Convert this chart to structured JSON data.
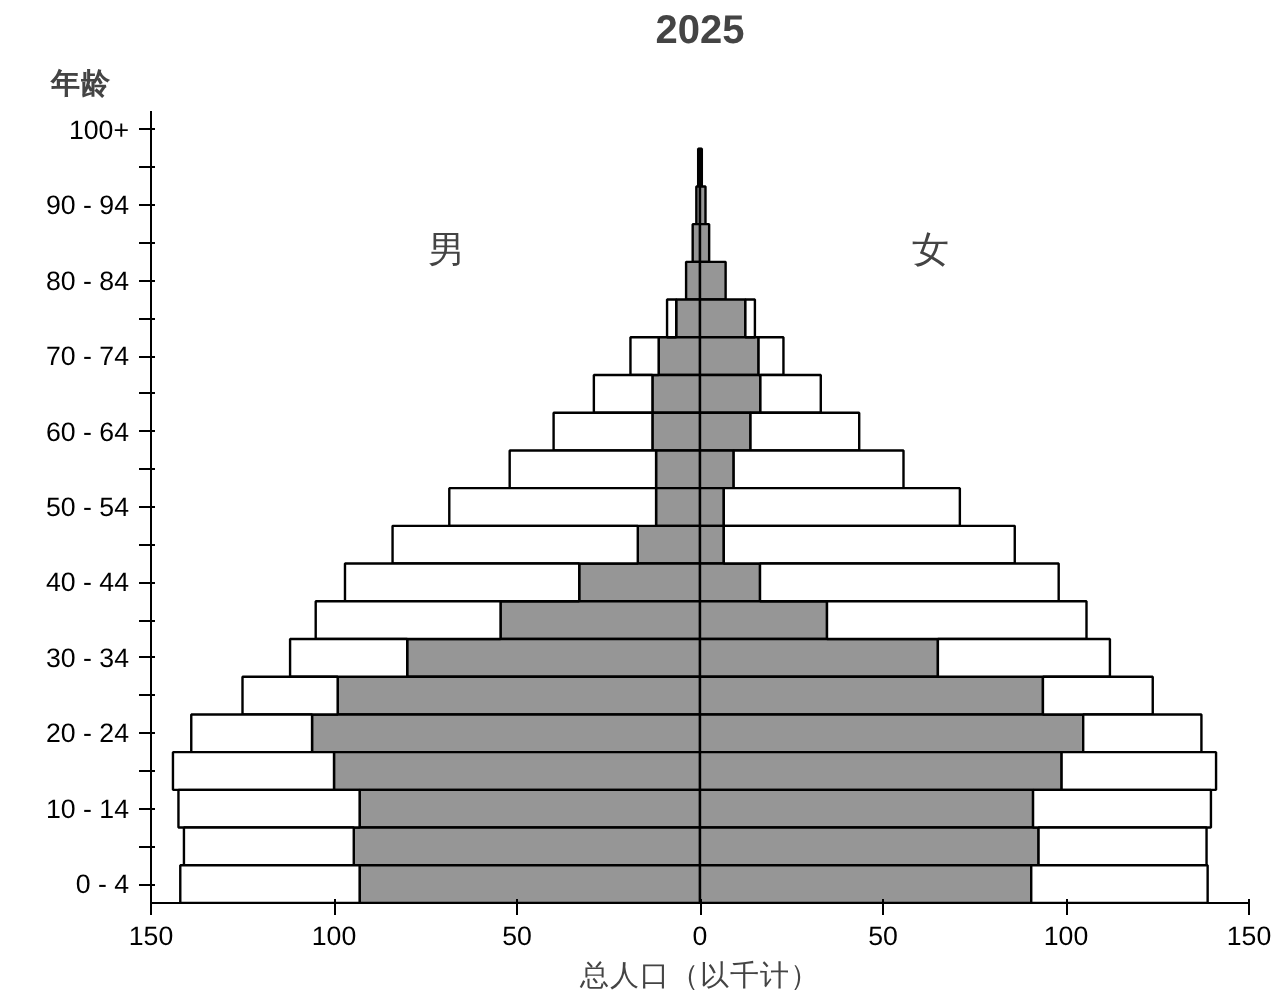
{
  "chart_data": {
    "type": "bar",
    "orientation": "horizontal",
    "stacked": true,
    "title": "2025",
    "ylabel": "年龄",
    "xlabel": "总人口（以千计）",
    "categories": [
      "100+",
      null,
      "90 - 94",
      null,
      "80 - 84",
      null,
      "70 - 74",
      null,
      "60 - 64",
      null,
      "50 - 54",
      null,
      "40 - 44",
      null,
      "30 - 34",
      null,
      "20 - 24",
      null,
      "10 - 14",
      null,
      "0 - 4"
    ],
    "series": [
      {
        "color": "#969696",
        "values": [
          0,
          -0.5,
          -1,
          -2,
          -3.8,
          -6.5,
          -11.3,
          -13,
          -13,
          -12,
          -12,
          -17,
          -33,
          -54.5,
          -80,
          -99,
          -106,
          -100,
          -93,
          -94.6,
          -93
        ]
      },
      {
        "color": "#ffffff",
        "values": [
          0,
          0,
          0,
          0,
          0,
          -2.5,
          -7.7,
          -16,
          -27,
          -40,
          -56.5,
          -67,
          -64,
          -50.5,
          -32,
          -26,
          -33,
          -44,
          -49.5,
          -46.4,
          -49
        ]
      },
      {
        "color": "#969696",
        "values": [
          0,
          0.5,
          1.5,
          2.5,
          7,
          12.4,
          16,
          16.5,
          13.8,
          9.2,
          6.5,
          6.5,
          16.4,
          34.7,
          65,
          93.7,
          104.7,
          98.8,
          91,
          92.5,
          90.5
        ]
      },
      {
        "color": "#ffffff",
        "values": [
          0,
          0,
          0,
          0,
          0,
          2.6,
          6.8,
          16.5,
          29.7,
          46.4,
          64.5,
          79.5,
          81.6,
          70.9,
          47,
          30,
          32.3,
          42.2,
          48.6,
          45.9,
          48.2
        ]
      }
    ],
    "xlim": [
      -150,
      150
    ],
    "xticks": [
      {
        "value": -150,
        "label": "150"
      },
      {
        "value": -100,
        "label": "100"
      },
      {
        "value": -50,
        "label": "50"
      },
      0,
      50,
      100,
      150
    ],
    "annotations": [
      "男",
      "女"
    ],
    "grid": false
  }
}
